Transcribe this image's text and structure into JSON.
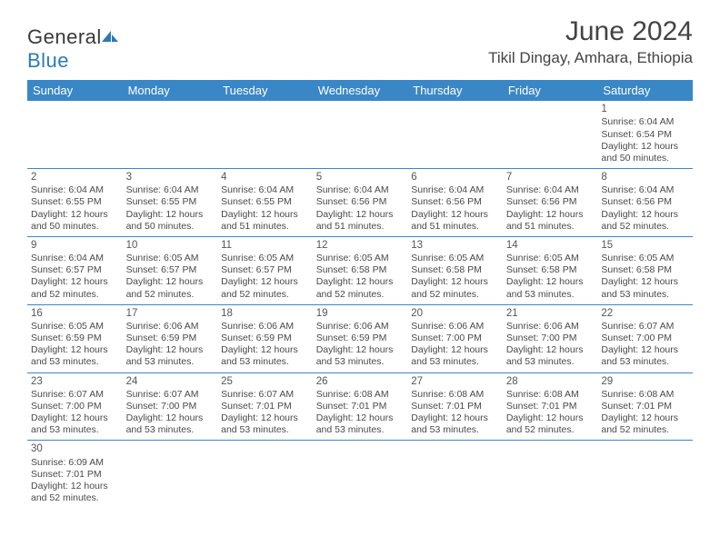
{
  "brand": {
    "part1": "General",
    "part2": "Blue"
  },
  "title": "June 2024",
  "location": "Tikil Dingay, Amhara, Ethiopia",
  "colors": {
    "header_bg": "#3a87c7",
    "header_text": "#ffffff",
    "border": "#3a87c7",
    "body_text": "#4a4a4a",
    "title_text": "#444444"
  },
  "weekdays": [
    "Sunday",
    "Monday",
    "Tuesday",
    "Wednesday",
    "Thursday",
    "Friday",
    "Saturday"
  ],
  "layout": {
    "first_day_column_index": 6,
    "days_in_month": 30
  },
  "days": [
    {
      "n": 1,
      "sunrise": "6:04 AM",
      "sunset": "6:54 PM",
      "dayh": 12,
      "daym": 50
    },
    {
      "n": 2,
      "sunrise": "6:04 AM",
      "sunset": "6:55 PM",
      "dayh": 12,
      "daym": 50
    },
    {
      "n": 3,
      "sunrise": "6:04 AM",
      "sunset": "6:55 PM",
      "dayh": 12,
      "daym": 50
    },
    {
      "n": 4,
      "sunrise": "6:04 AM",
      "sunset": "6:55 PM",
      "dayh": 12,
      "daym": 51
    },
    {
      "n": 5,
      "sunrise": "6:04 AM",
      "sunset": "6:56 PM",
      "dayh": 12,
      "daym": 51
    },
    {
      "n": 6,
      "sunrise": "6:04 AM",
      "sunset": "6:56 PM",
      "dayh": 12,
      "daym": 51
    },
    {
      "n": 7,
      "sunrise": "6:04 AM",
      "sunset": "6:56 PM",
      "dayh": 12,
      "daym": 51
    },
    {
      "n": 8,
      "sunrise": "6:04 AM",
      "sunset": "6:56 PM",
      "dayh": 12,
      "daym": 52
    },
    {
      "n": 9,
      "sunrise": "6:04 AM",
      "sunset": "6:57 PM",
      "dayh": 12,
      "daym": 52
    },
    {
      "n": 10,
      "sunrise": "6:05 AM",
      "sunset": "6:57 PM",
      "dayh": 12,
      "daym": 52
    },
    {
      "n": 11,
      "sunrise": "6:05 AM",
      "sunset": "6:57 PM",
      "dayh": 12,
      "daym": 52
    },
    {
      "n": 12,
      "sunrise": "6:05 AM",
      "sunset": "6:58 PM",
      "dayh": 12,
      "daym": 52
    },
    {
      "n": 13,
      "sunrise": "6:05 AM",
      "sunset": "6:58 PM",
      "dayh": 12,
      "daym": 52
    },
    {
      "n": 14,
      "sunrise": "6:05 AM",
      "sunset": "6:58 PM",
      "dayh": 12,
      "daym": 53
    },
    {
      "n": 15,
      "sunrise": "6:05 AM",
      "sunset": "6:58 PM",
      "dayh": 12,
      "daym": 53
    },
    {
      "n": 16,
      "sunrise": "6:05 AM",
      "sunset": "6:59 PM",
      "dayh": 12,
      "daym": 53
    },
    {
      "n": 17,
      "sunrise": "6:06 AM",
      "sunset": "6:59 PM",
      "dayh": 12,
      "daym": 53
    },
    {
      "n": 18,
      "sunrise": "6:06 AM",
      "sunset": "6:59 PM",
      "dayh": 12,
      "daym": 53
    },
    {
      "n": 19,
      "sunrise": "6:06 AM",
      "sunset": "6:59 PM",
      "dayh": 12,
      "daym": 53
    },
    {
      "n": 20,
      "sunrise": "6:06 AM",
      "sunset": "7:00 PM",
      "dayh": 12,
      "daym": 53
    },
    {
      "n": 21,
      "sunrise": "6:06 AM",
      "sunset": "7:00 PM",
      "dayh": 12,
      "daym": 53
    },
    {
      "n": 22,
      "sunrise": "6:07 AM",
      "sunset": "7:00 PM",
      "dayh": 12,
      "daym": 53
    },
    {
      "n": 23,
      "sunrise": "6:07 AM",
      "sunset": "7:00 PM",
      "dayh": 12,
      "daym": 53
    },
    {
      "n": 24,
      "sunrise": "6:07 AM",
      "sunset": "7:00 PM",
      "dayh": 12,
      "daym": 53
    },
    {
      "n": 25,
      "sunrise": "6:07 AM",
      "sunset": "7:01 PM",
      "dayh": 12,
      "daym": 53
    },
    {
      "n": 26,
      "sunrise": "6:08 AM",
      "sunset": "7:01 PM",
      "dayh": 12,
      "daym": 53
    },
    {
      "n": 27,
      "sunrise": "6:08 AM",
      "sunset": "7:01 PM",
      "dayh": 12,
      "daym": 53
    },
    {
      "n": 28,
      "sunrise": "6:08 AM",
      "sunset": "7:01 PM",
      "dayh": 12,
      "daym": 52
    },
    {
      "n": 29,
      "sunrise": "6:08 AM",
      "sunset": "7:01 PM",
      "dayh": 12,
      "daym": 52
    },
    {
      "n": 30,
      "sunrise": "6:09 AM",
      "sunset": "7:01 PM",
      "dayh": 12,
      "daym": 52
    }
  ],
  "labels": {
    "sunrise": "Sunrise:",
    "sunset": "Sunset:",
    "daylight_prefix": "Daylight:",
    "hours_word": "hours",
    "and_word": "and",
    "minutes_word": "minutes."
  }
}
